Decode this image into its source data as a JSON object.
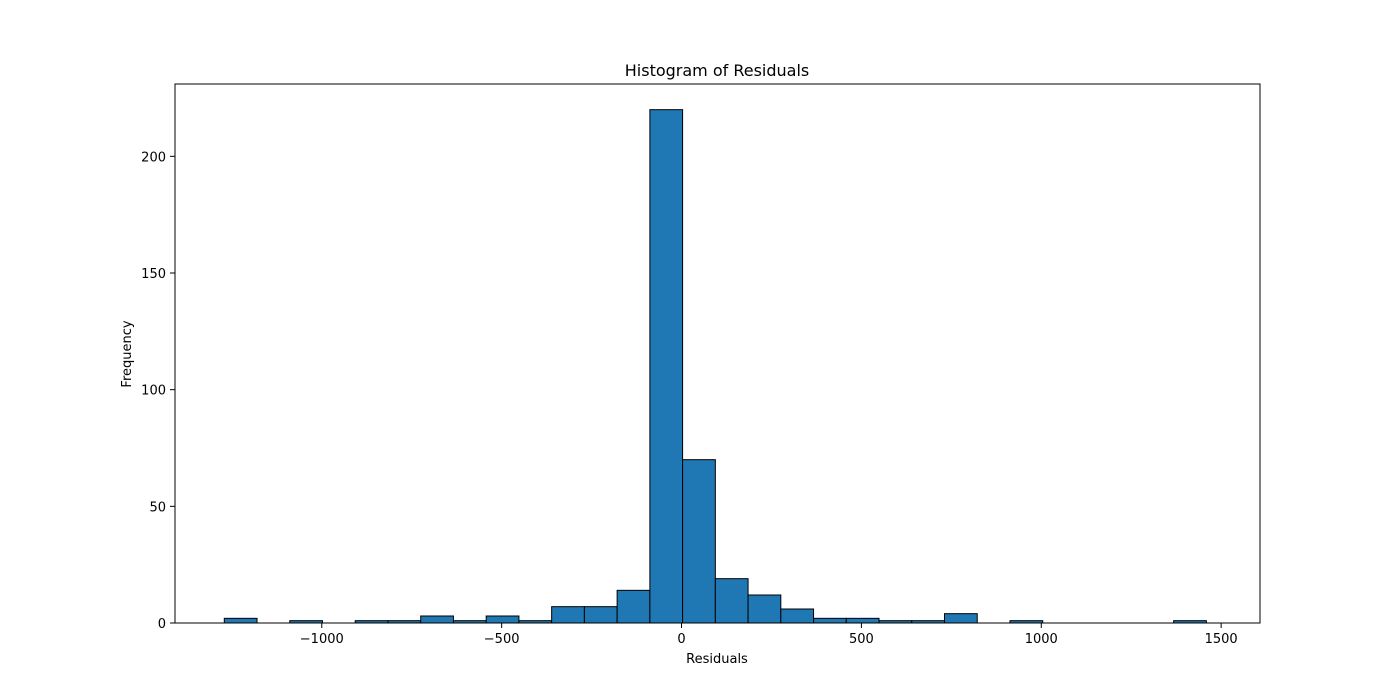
{
  "chart_data": {
    "type": "bar",
    "title": "Histogram of Residuals",
    "xlabel": "Residuals",
    "ylabel": "Frequency",
    "xlim": [
      -1408,
      1608
    ],
    "ylim": [
      0,
      231
    ],
    "xticks": [
      -1000,
      -500,
      0,
      500,
      1000,
      1500
    ],
    "xtick_labels": [
      "−1000",
      "−500",
      "0",
      "500",
      "1000",
      "1500"
    ],
    "yticks": [
      0,
      50,
      100,
      150,
      200
    ],
    "ytick_labels": [
      "0",
      "50",
      "100",
      "150",
      "200"
    ],
    "bin_edges": [
      -1271,
      -1180,
      -1089,
      -998,
      -907,
      -816,
      -725,
      -634,
      -543,
      -452,
      -361,
      -270,
      -179,
      -88,
      3,
      94,
      185,
      276,
      367,
      458,
      549,
      640,
      731,
      822,
      913,
      1004,
      1095,
      1186,
      1277,
      1368,
      1459
    ],
    "values": [
      2,
      0,
      1,
      0,
      1,
      1,
      3,
      1,
      3,
      1,
      7,
      7,
      14,
      220,
      70,
      19,
      12,
      6,
      2,
      2,
      1,
      1,
      4,
      0,
      1,
      0,
      0,
      0,
      0,
      1
    ],
    "grid": false,
    "colors": {
      "bar_fill": "#1f77b4",
      "bar_edge": "#000000"
    }
  }
}
